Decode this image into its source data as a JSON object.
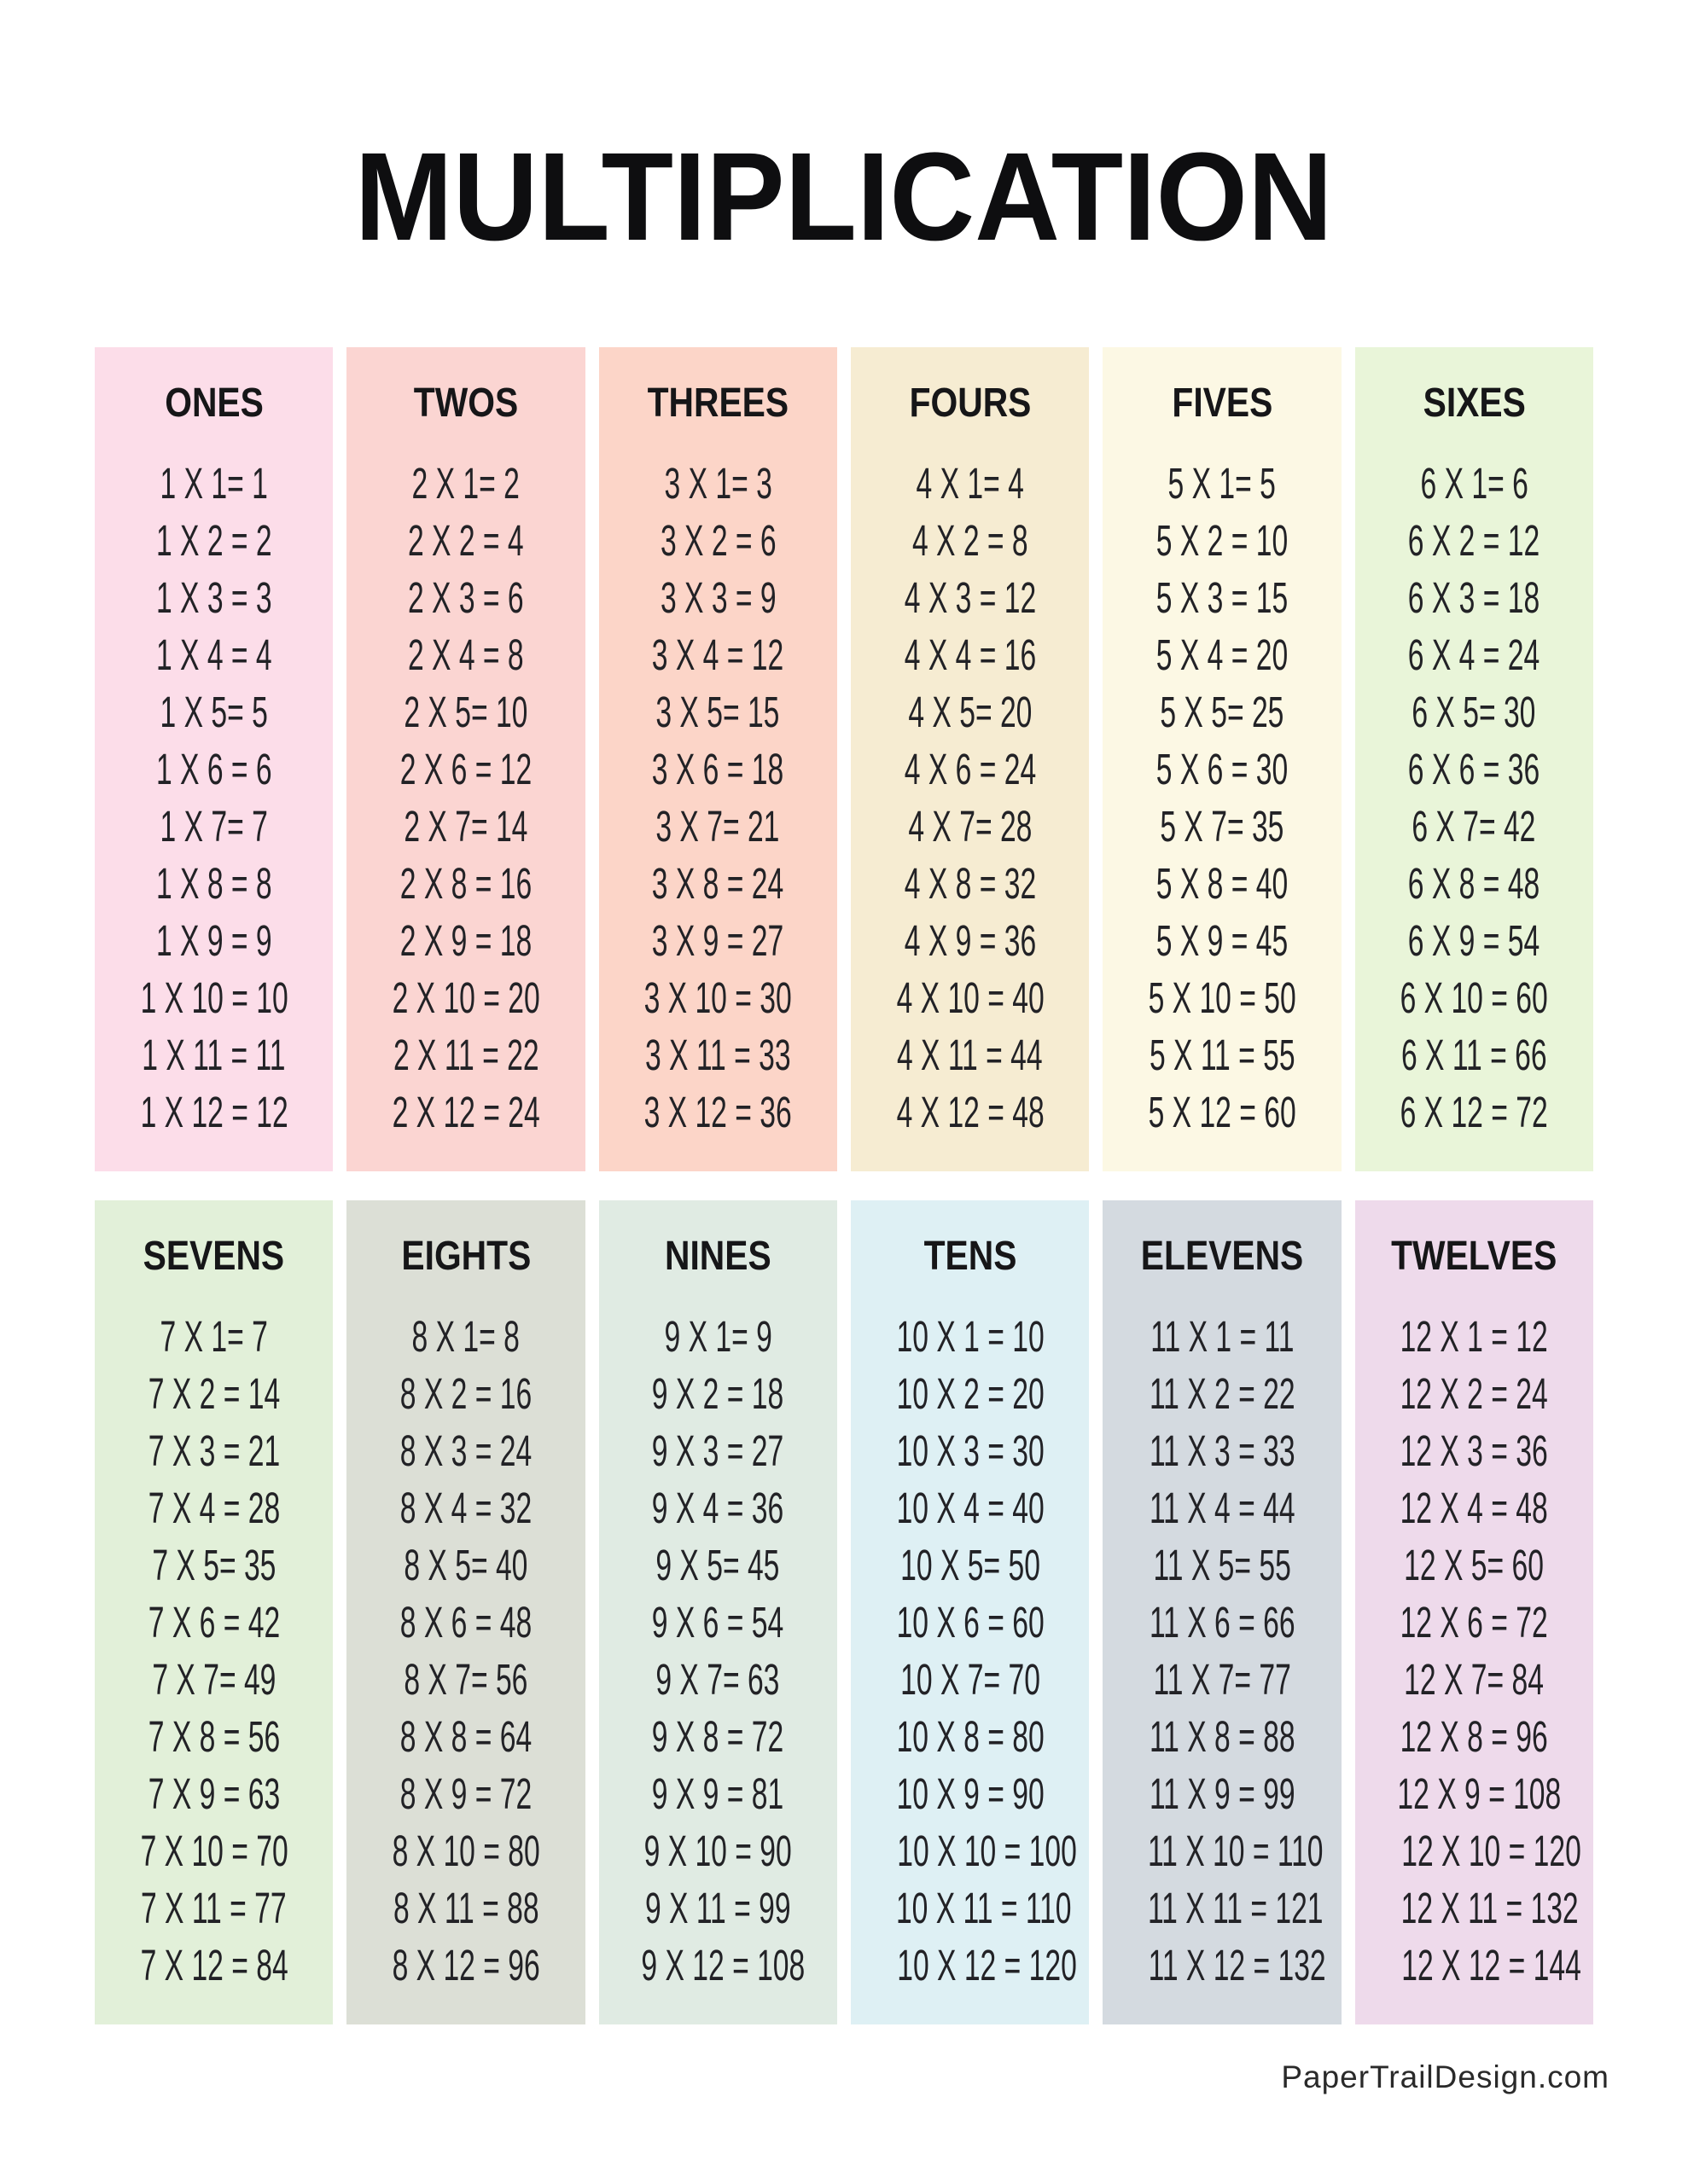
{
  "title": "MULTIPLICATION",
  "footer": {
    "credit": "PaperTrailDesign.com"
  },
  "colors": {
    "page_background": "#ffffff",
    "title_text": "#0e0e10",
    "equation_text": "#222226"
  },
  "sections": [
    {
      "label": "ONES",
      "base": 1,
      "color": "#fcdde9",
      "equations": [
        "1 X 1= 1",
        "1 X 2 = 2",
        "1 X 3 = 3",
        "1 X 4 = 4",
        "1 X 5= 5",
        "1 X 6 = 6",
        "1 X 7= 7",
        "1 X 8 = 8",
        "1 X 9 = 9",
        "1 X 10 = 10",
        "1 X 11 = 11",
        "1 X 12 = 12"
      ]
    },
    {
      "label": "TWOS",
      "base": 2,
      "color": "#fbd5d2",
      "equations": [
        "2 X 1= 2",
        "2 X 2 = 4",
        "2 X 3 = 6",
        "2 X 4 = 8",
        "2 X 5= 10",
        "2 X 6 = 12",
        "2 X 7= 14",
        "2 X 8 = 16",
        "2 X 9 = 18",
        "2 X 10 = 20",
        "2 X 11 = 22",
        "2 X 12 = 24"
      ]
    },
    {
      "label": "THREES",
      "base": 3,
      "color": "#fcd5c8",
      "equations": [
        "3 X 1= 3",
        "3 X 2 = 6",
        "3 X 3 = 9",
        "3 X 4 = 12",
        "3 X 5= 15",
        "3 X 6 = 18",
        "3 X 7= 21",
        "3 X 8 = 24",
        "3 X 9 = 27",
        "3 X 10 = 30",
        "3 X 11 = 33",
        "3 X 12 = 36"
      ]
    },
    {
      "label": "FOURS",
      "base": 4,
      "color": "#f6ecd2",
      "equations": [
        "4 X 1= 4",
        "4 X 2 = 8",
        "4 X 3 = 12",
        "4 X 4 = 16",
        "4 X 5= 20",
        "4 X 6 = 24",
        "4 X 7= 28",
        "4 X 8 = 32",
        "4 X 9 = 36",
        "4 X 10 = 40",
        "4 X 11 = 44",
        "4 X 12 = 48"
      ]
    },
    {
      "label": "FIVES",
      "base": 5,
      "color": "#fcf8e4",
      "equations": [
        "5 X 1= 5",
        "5 X 2 = 10",
        "5 X 3 = 15",
        "5 X 4 = 20",
        "5 X 5= 25",
        "5 X 6 = 30",
        "5 X 7= 35",
        "5 X 8 = 40",
        "5 X 9 = 45",
        "5 X 10 = 50",
        "5 X 11 = 55",
        "5 X 12 = 60"
      ]
    },
    {
      "label": "SIXES",
      "base": 6,
      "color": "#e9f5d9",
      "equations": [
        "6 X 1= 6",
        "6 X 2 = 12",
        "6 X 3 = 18",
        "6 X 4 = 24",
        "6 X 5= 30",
        "6 X 6 = 36",
        "6 X 7= 42",
        "6 X 8 = 48",
        "6 X 9 = 54",
        "6 X 10 = 60",
        "6 X 11 = 66",
        "6 X 12 = 72"
      ]
    },
    {
      "label": "SEVENS",
      "base": 7,
      "color": "#e2f0d9",
      "equations": [
        "7 X 1= 7",
        "7 X 2 = 14",
        "7 X 3 = 21",
        "7 X 4 = 28",
        "7 X 5= 35",
        "7 X 6 = 42",
        "7 X 7= 49",
        "7 X 8 = 56",
        "7 X 9 = 63",
        "7 X 10 = 70",
        "7 X 11 = 77",
        "7 X 12 = 84"
      ]
    },
    {
      "label": "EIGHTS",
      "base": 8,
      "color": "#dcdfd6",
      "equations": [
        "8 X 1= 8",
        "8 X 2 = 16",
        "8 X 3 = 24",
        "8 X 4 = 32",
        "8 X 5= 40",
        "8 X 6 = 48",
        "8 X 7= 56",
        "8 X 8 = 64",
        "8 X 9 = 72",
        "8 X 10 = 80",
        "8 X 11 = 88",
        "8 X 12 = 96"
      ]
    },
    {
      "label": "NINES",
      "base": 9,
      "color": "#e0ebe3",
      "equations": [
        "9 X 1= 9",
        "9 X 2 = 18",
        "9 X 3 = 27",
        "9 X 4 = 36",
        "9 X 5= 45",
        "9 X 6 = 54",
        "9 X 7= 63",
        "9 X 8 = 72",
        "9 X 9 = 81",
        "9 X 10 = 90",
        "9 X 11 = 99",
        "9 X 12 = 108"
      ]
    },
    {
      "label": "TENS",
      "base": 10,
      "color": "#def0f4",
      "equations": [
        "10 X 1 = 10",
        "10 X 2 = 20",
        "10 X 3 = 30",
        "10 X 4 = 40",
        "10 X 5= 50",
        "10 X 6 = 60",
        "10 X 7= 70",
        "10 X 8 = 80",
        "10 X 9 = 90",
        "10 X 10 = 100",
        "10 X 11 = 110",
        "10 X 12 = 120"
      ]
    },
    {
      "label": "ELEVENS",
      "base": 11,
      "color": "#d4dae0",
      "equations": [
        "11 X 1 = 11",
        "11 X 2 = 22",
        "11 X 3 = 33",
        "11 X 4 = 44",
        "11 X 5= 55",
        "11 X 6 = 66",
        "11 X 7= 77",
        "11 X 8 = 88",
        "11 X 9 = 99",
        "11 X 10 = 110",
        "11 X 11 = 121",
        "11 X 12 = 132"
      ]
    },
    {
      "label": "TWELVES",
      "base": 12,
      "color": "#eedaeb",
      "equations": [
        "12 X 1 = 12",
        "12 X 2 = 24",
        "12 X 3 = 36",
        "12 X 4 = 48",
        "12 X 5= 60",
        "12 X 6 = 72",
        "12 X 7= 84",
        "12 X 8 = 96",
        "12 X 9 = 108",
        "12 X 10 = 120",
        "12 X 11 = 132",
        "12 X 12 = 144"
      ]
    }
  ]
}
